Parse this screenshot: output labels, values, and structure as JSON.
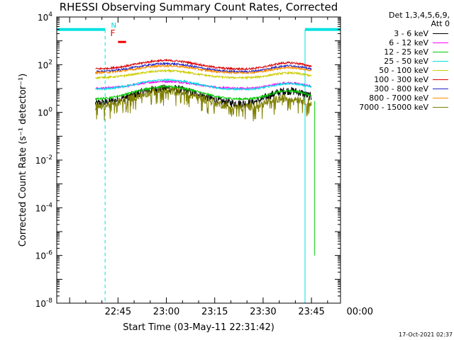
{
  "chart_data": {
    "type": "line",
    "title": "RHESSI Observing Summary Count Rates, Corrected",
    "xlabel": "Start Time (03-May-11 22:31:42)",
    "ylabel": "Corrected Count Rate (s⁻¹ detector⁻¹)",
    "ylog": true,
    "ylim": [
      1e-08,
      10000.0
    ],
    "y_ticks": [
      {
        "value": 10000.0,
        "base": "10",
        "exp": "4"
      },
      {
        "value": 100.0,
        "base": "10",
        "exp": "2"
      },
      {
        "value": 1.0,
        "base": "10",
        "exp": "0"
      },
      {
        "value": 0.01,
        "base": "10",
        "exp": "-2"
      },
      {
        "value": 0.0001,
        "base": "10",
        "exp": "-4"
      },
      {
        "value": 1e-06,
        "base": "10",
        "exp": "-6"
      },
      {
        "value": 1e-08,
        "base": "10",
        "exp": "-8"
      }
    ],
    "x_range_min": [
      -4,
      84
    ],
    "x_ticks": [
      {
        "min": 15,
        "label": "22:45"
      },
      {
        "min": 30,
        "label": "23:00"
      },
      {
        "min": 45,
        "label": "23:15"
      },
      {
        "min": 60,
        "label": "23:30"
      },
      {
        "min": 75,
        "label": "23:45"
      },
      {
        "min": 90,
        "label": "00:00"
      }
    ],
    "x_tick_interval_min": 15,
    "x_minor_interval_min": 5,
    "x_origin": "22:30",
    "data_span_min": [
      8,
      75
    ],
    "saa_markers": [
      {
        "start_min": -4,
        "end_min": 11,
        "level": 3000,
        "dashed_at_min": 11
      },
      {
        "start_min": 73,
        "end_min": 84,
        "level": 3000,
        "dashed_at_min": 84
      }
    ],
    "flags": [
      {
        "label": "N",
        "x_min": 13.5,
        "color": "#00d8d8"
      },
      {
        "label": "F",
        "x_min": 13.5,
        "color": "#ee0000"
      }
    ],
    "flag_bar": {
      "start_min": 15,
      "end_min": 17.5,
      "value": 900,
      "color": "#ee0000"
    },
    "legend_header": [
      "Det 1,3,4,5,6,9,",
      "Att 0"
    ],
    "series": [
      {
        "name": "3 - 6 keV",
        "color": "#000000",
        "base": 2.2,
        "peak1": 10,
        "peak2": 8
      },
      {
        "name": "6 - 12 keV",
        "color": "#ff00ff",
        "base": 10,
        "peak1": 20,
        "peak2": 17
      },
      {
        "name": "12 - 25 keV",
        "color": "#00cc00",
        "base": 3.5,
        "peak1": 12,
        "peak2": 8
      },
      {
        "name": "25 - 50 keV",
        "color": "#00e0e0",
        "base": 9,
        "peak1": 23,
        "peak2": 16
      },
      {
        "name": "50 - 100 keV",
        "color": "#cccc00",
        "base": 28,
        "peak1": 55,
        "peak2": 45
      },
      {
        "name": "100 - 300 keV",
        "color": "#dd0000",
        "base": 65,
        "peak1": 150,
        "peak2": 120
      },
      {
        "name": "300 - 800 keV",
        "color": "#2020cc",
        "base": 50,
        "peak1": 110,
        "peak2": 90
      },
      {
        "name": "800 - 7000 keV",
        "color": "#ff8c00",
        "base": 45,
        "peak1": 90,
        "peak2": 75
      },
      {
        "name": "7000 - 15000 keV",
        "color": "#808000",
        "base": 1.6,
        "peak1": 8,
        "peak2": 4
      }
    ],
    "green_drop": {
      "x_min": 76,
      "values": [
        3,
        1e-06
      ]
    },
    "colors": {
      "axis": "#000000",
      "saa": "#00e0e0",
      "background": "#ffffff"
    }
  },
  "timestamp": "17-Oct-2021 02:37"
}
